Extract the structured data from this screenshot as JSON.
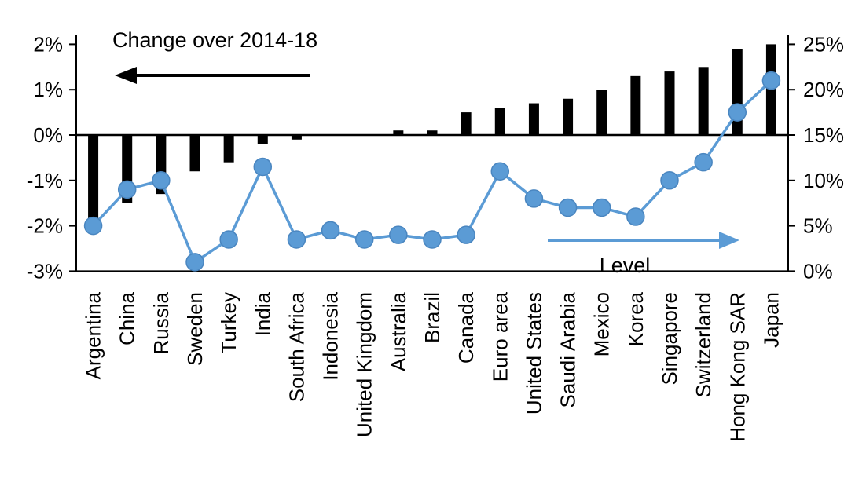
{
  "chart_data": {
    "type": "combo_bar_line",
    "title": "",
    "categories": [
      "Argentina",
      "China",
      "Russia",
      "Sweden",
      "Turkey",
      "India",
      "South Africa",
      "Indonesia",
      "United Kingdom",
      "Australia",
      "Brazil",
      "Canada",
      "Euro area",
      "United States",
      "Saudi Arabia",
      "Mexico",
      "Korea",
      "Singapore",
      "Switzerland",
      "Hong Kong SAR",
      "Japan"
    ],
    "series": [
      {
        "name": "Change over 2014-18",
        "type": "bar",
        "axis": "left",
        "color": "#000000",
        "values": [
          -1.9,
          -1.5,
          -1.3,
          -0.8,
          -0.6,
          -0.2,
          -0.1,
          0,
          0,
          0.1,
          0.1,
          0.5,
          0.6,
          0.7,
          0.8,
          1.0,
          1.3,
          1.4,
          1.5,
          1.9,
          2.0
        ]
      },
      {
        "name": "Level",
        "type": "line",
        "axis": "right",
        "color": "#5B9BD5",
        "values": [
          5,
          9,
          10,
          1,
          3.5,
          11.5,
          3.5,
          4.5,
          3.5,
          4,
          3.5,
          4,
          11,
          8,
          7,
          7,
          6,
          10,
          12,
          17.5,
          21
        ]
      }
    ],
    "left_axis": {
      "min": -3,
      "max": 2,
      "ticks": [
        {
          "value": 2,
          "label": "2%"
        },
        {
          "value": 1,
          "label": "1%"
        },
        {
          "value": 0,
          "label": "0%"
        },
        {
          "value": -1,
          "label": "-1%"
        },
        {
          "value": -2,
          "label": "-2%"
        },
        {
          "value": -3,
          "label": "-3%"
        }
      ]
    },
    "right_axis": {
      "min": 0,
      "max": 25,
      "ticks": [
        {
          "value": 25,
          "label": "25%"
        },
        {
          "value": 20,
          "label": "20%"
        },
        {
          "value": 15,
          "label": "15%"
        },
        {
          "value": 10,
          "label": "10%"
        },
        {
          "value": 5,
          "label": "5%"
        },
        {
          "value": 0,
          "label": "0%"
        }
      ]
    },
    "annotations": {
      "change_label": "Change over 2014-18",
      "level_label": "Level"
    },
    "legend_position": "none",
    "grid": false
  },
  "colors": {
    "bar": "#000000",
    "line": "#5B9BD5",
    "background": "#ffffff"
  }
}
